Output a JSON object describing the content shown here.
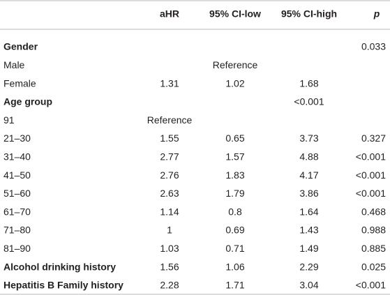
{
  "table": {
    "header": [
      null,
      "aHR",
      "95% CI-low",
      "95% CI-high",
      "p"
    ],
    "rows": [
      {
        "bold": true,
        "cells": [
          "Gender",
          null,
          null,
          null,
          "0.033"
        ]
      },
      {
        "bold": false,
        "cells": [
          "Male",
          null,
          "Reference",
          null,
          null
        ]
      },
      {
        "bold": false,
        "cells": [
          "Female",
          "1.31",
          "1.02",
          "1.68",
          null
        ]
      },
      {
        "bold": true,
        "cells": [
          "Age group",
          null,
          null,
          "<0.001",
          null
        ]
      },
      {
        "bold": false,
        "cells": [
          "91",
          "Reference",
          null,
          null,
          null
        ]
      },
      {
        "bold": false,
        "cells": [
          "21–30",
          "1.55",
          "0.65",
          "3.73",
          "0.327"
        ]
      },
      {
        "bold": false,
        "cells": [
          "31–40",
          "2.77",
          "1.57",
          "4.88",
          "<0.001"
        ]
      },
      {
        "bold": false,
        "cells": [
          "41–50",
          "2.76",
          "1.83",
          "4.17",
          "<0.001"
        ]
      },
      {
        "bold": false,
        "cells": [
          "51–60",
          "2.63",
          "1.79",
          "3.86",
          "<0.001"
        ]
      },
      {
        "bold": false,
        "cells": [
          "61–70",
          "1.14",
          "0.8",
          "1.64",
          "0.468"
        ]
      },
      {
        "bold": false,
        "cells": [
          "71–80",
          "1",
          "0.69",
          "1.43",
          "0.988"
        ]
      },
      {
        "bold": false,
        "cells": [
          "81–90",
          "1.03",
          "0.71",
          "1.49",
          "0.885"
        ]
      },
      {
        "bold": true,
        "cells": [
          "Alcohol drinking history",
          "1.56",
          "1.06",
          "2.29",
          "0.025"
        ]
      },
      {
        "bold": true,
        "cells": [
          "Hepatitis B Family history",
          "2.28",
          "1.71",
          "3.04",
          "<0.001"
        ]
      }
    ]
  }
}
